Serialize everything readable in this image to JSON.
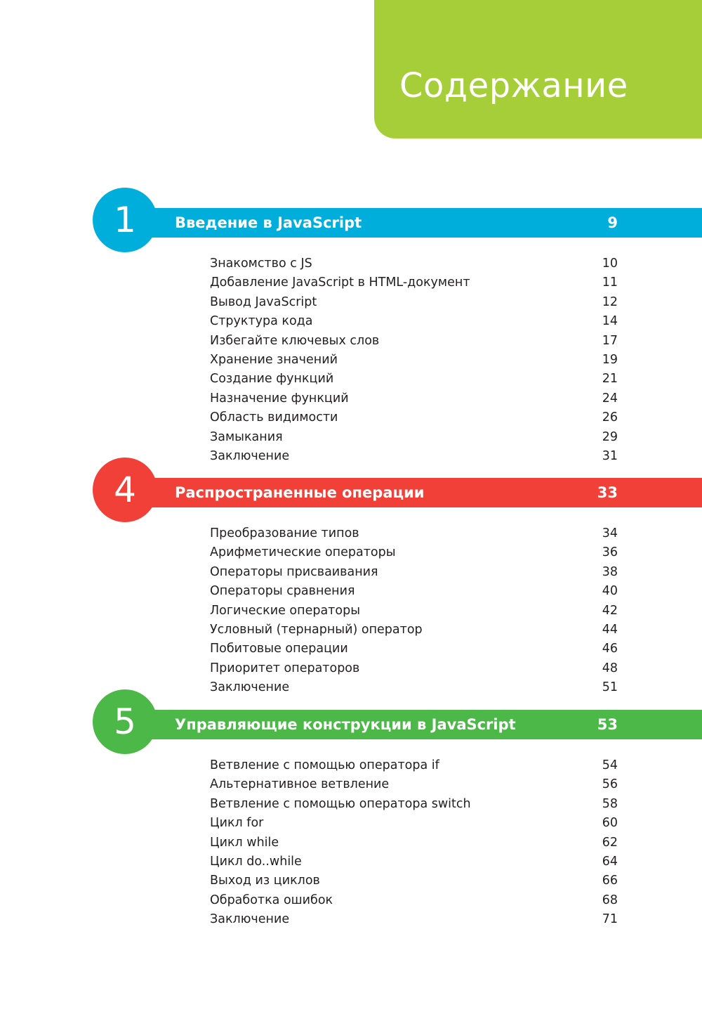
{
  "header": {
    "title": "Содержание",
    "color": "#a6ce39"
  },
  "chapters": [
    {
      "number": "1",
      "title": "Введение в JavaScript",
      "page": "9",
      "color": "#00aedb",
      "entries": [
        {
          "title": "Знакомство с JS",
          "page": "10"
        },
        {
          "title": "Добавление JavaScript в HTML-документ",
          "page": "11"
        },
        {
          "title": "Вывод JavaScript",
          "page": "12"
        },
        {
          "title": "Структура кода",
          "page": "14"
        },
        {
          "title": "Избегайте ключевых слов",
          "page": "17"
        },
        {
          "title": "Хранение значений",
          "page": "19"
        },
        {
          "title": "Создание функций",
          "page": "21"
        },
        {
          "title": "Назначение функций",
          "page": "24"
        },
        {
          "title": "Область видимости",
          "page": "26"
        },
        {
          "title": "Замыкания",
          "page": "29"
        },
        {
          "title": "Заключение",
          "page": "31"
        }
      ]
    },
    {
      "number": "4",
      "title": "Распространенные операции",
      "page": "33",
      "color": "#f04037",
      "entries": [
        {
          "title": "Преобразование типов",
          "page": "34"
        },
        {
          "title": "Арифметические операторы",
          "page": "36"
        },
        {
          "title": "Операторы присваивания",
          "page": "38"
        },
        {
          "title": "Операторы сравнения",
          "page": "40"
        },
        {
          "title": "Логические операторы",
          "page": "42"
        },
        {
          "title": "Условный (тернарный) оператор",
          "page": "44"
        },
        {
          "title": "Побитовые операции",
          "page": "46"
        },
        {
          "title": "Приоритет операторов",
          "page": "48"
        },
        {
          "title": "Заключение",
          "page": "51"
        }
      ]
    },
    {
      "number": "5",
      "title": "Управляющие конструкции в JavaScript",
      "page": "53",
      "color": "#4cb848",
      "entries": [
        {
          "title": "Ветвление с помощью оператора if",
          "page": "54"
        },
        {
          "title": "Альтернативное ветвление",
          "page": "56"
        },
        {
          "title": "Ветвление с помощью оператора switch",
          "page": "58"
        },
        {
          "title": "Цикл for",
          "page": "60"
        },
        {
          "title": "Цикл while",
          "page": "62"
        },
        {
          "title": "Цикл do..while",
          "page": "64"
        },
        {
          "title": "Выход из циклов",
          "page": "66"
        },
        {
          "title": "Обработка ошибок",
          "page": "68"
        },
        {
          "title": "Заключение",
          "page": "71"
        }
      ]
    }
  ]
}
